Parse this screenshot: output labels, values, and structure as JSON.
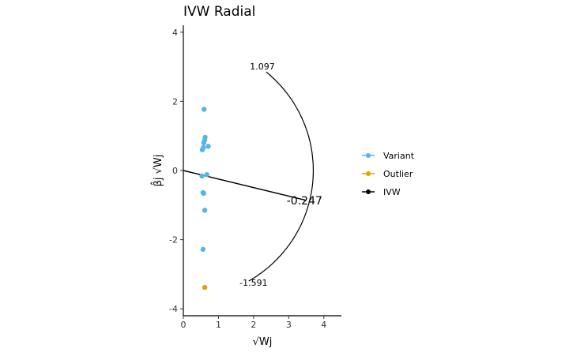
{
  "chart_data": {
    "type": "scatter",
    "title": "IVW Radial",
    "xlabel": "√Wj",
    "ylabel": "β̂j √Wj",
    "xlim": [
      0,
      4.5
    ],
    "ylim": [
      -4.2,
      4.2
    ],
    "x_ticks": [
      0,
      1,
      2,
      3,
      4
    ],
    "y_ticks": [
      -4,
      -2,
      0,
      2,
      4
    ],
    "x_tick_labels": [
      "0",
      "1",
      "2",
      "3",
      "4"
    ],
    "y_tick_labels": [
      "-4",
      "-2",
      "0",
      "2",
      "4"
    ],
    "grid": false,
    "legend_position": "right",
    "series": [
      {
        "name": "Variant",
        "color": "#56B4E9",
        "points": [
          {
            "x": 0.59,
            "y": 1.77
          },
          {
            "x": 0.62,
            "y": 0.96
          },
          {
            "x": 0.61,
            "y": 0.88
          },
          {
            "x": 0.58,
            "y": 0.8
          },
          {
            "x": 0.71,
            "y": 0.7
          },
          {
            "x": 0.57,
            "y": 0.66
          },
          {
            "x": 0.54,
            "y": 0.6
          },
          {
            "x": 0.67,
            "y": -0.12
          },
          {
            "x": 0.53,
            "y": -0.16
          },
          {
            "x": 0.56,
            "y": -0.64
          },
          {
            "x": 0.58,
            "y": -0.66
          },
          {
            "x": 0.61,
            "y": -1.15
          },
          {
            "x": 0.56,
            "y": -2.28
          }
        ]
      },
      {
        "name": "Outlier",
        "color": "#E69F00",
        "points": [
          {
            "x": 0.61,
            "y": -3.38
          }
        ]
      },
      {
        "name": "IVW",
        "color": "#000000",
        "line": {
          "intercept": 0,
          "slope": -0.247,
          "x_end": 3.5
        }
      }
    ],
    "arc": {
      "radius": 3.7,
      "labels": [
        {
          "text": "1.097",
          "x": 2.25,
          "y": 2.92
        },
        {
          "text": "-1.591",
          "x": 2.0,
          "y": -3.33
        }
      ]
    },
    "estimate_label": {
      "text": "-0.247",
      "x": 3.45,
      "y": -0.98
    }
  }
}
